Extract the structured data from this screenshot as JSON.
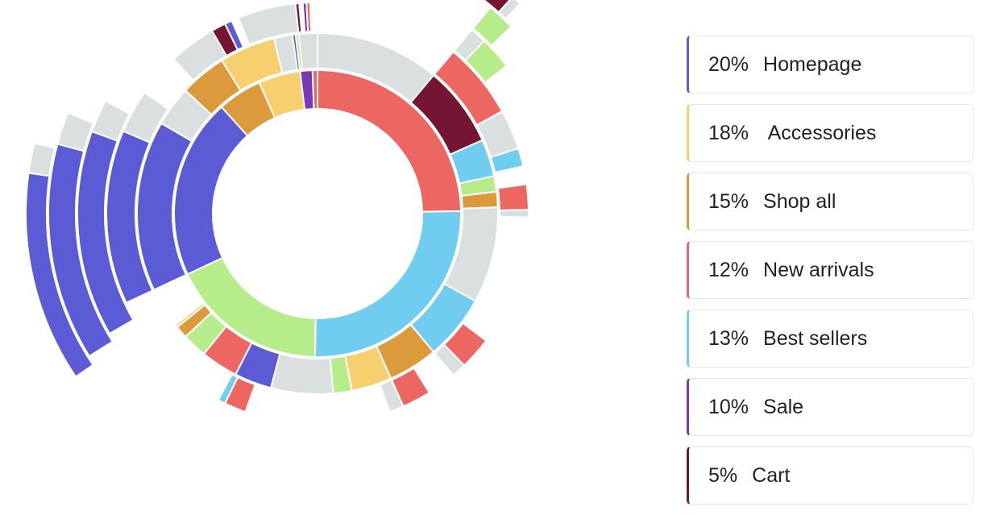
{
  "colors": {
    "homepage": "#5b5bd6",
    "accessories": "#f6d06e",
    "shop_all": "#dc9a3c",
    "new_arrivals": "#ec6762",
    "best_sellers": "#70cdef",
    "sale": "#7838b8",
    "cart": "#751534",
    "green": "#b6ec89",
    "other": "#dadfdf"
  },
  "legend": [
    {
      "pct": "20%",
      "label": "Homepage",
      "color": "#5b5bd6"
    },
    {
      "pct": "18%",
      "label": " Accessories",
      "color": "#f6d06e"
    },
    {
      "pct": "15%",
      "label": "Shop all",
      "color": "#dc9a3c"
    },
    {
      "pct": "12%",
      "label": "New arrivals",
      "color": "#ec6762"
    },
    {
      "pct": "13%",
      "label": "Best sellers",
      "color": "#70cdef"
    },
    {
      "pct": "10%",
      "label": "Sale",
      "color": "#7838b8"
    },
    {
      "pct": "5%",
      "label": "Cart",
      "color": "#751534"
    }
  ],
  "chart_data": {
    "type": "sunburst",
    "title": "",
    "rings": [
      [
        {
          "name": "New arrivals",
          "start": 0,
          "end": 89,
          "color": "new_arrivals"
        },
        {
          "name": "Best sellers",
          "start": 89,
          "end": 181,
          "color": "best_sellers"
        },
        {
          "name": "Green",
          "start": 181,
          "end": 245,
          "color": "green"
        },
        {
          "name": "Homepage",
          "start": 245,
          "end": 318,
          "color": "homepage"
        },
        {
          "name": "Shop all",
          "start": 318,
          "end": 336,
          "color": "shop_all"
        },
        {
          "name": "Accessories",
          "start": 336,
          "end": 353,
          "color": "accessories"
        },
        {
          "name": "Sale",
          "start": 353,
          "end": 358,
          "color": "sale"
        },
        {
          "name": "New arrivals",
          "start": 358,
          "end": 360,
          "color": "new_arrivals"
        }
      ],
      [
        {
          "name": "Other",
          "start": 0,
          "end": 40,
          "color": "other"
        },
        {
          "name": "Cart",
          "start": 40,
          "end": 66,
          "color": "cart"
        },
        {
          "name": "Best sellers",
          "start": 66,
          "end": 78,
          "color": "best_sellers"
        },
        {
          "name": "Green",
          "start": 78,
          "end": 83,
          "color": "green"
        },
        {
          "name": "Shop all",
          "start": 83,
          "end": 88,
          "color": "shop_all"
        },
        {
          "name": "Other",
          "start": 88,
          "end": 119,
          "color": "other"
        },
        {
          "name": "Best sellers",
          "start": 119,
          "end": 140,
          "color": "best_sellers"
        },
        {
          "name": "Shop all",
          "start": 140,
          "end": 156,
          "color": "shop_all"
        },
        {
          "name": "Accessories",
          "start": 156,
          "end": 169,
          "color": "accessories"
        },
        {
          "name": "Green",
          "start": 169,
          "end": 175,
          "color": "green"
        },
        {
          "name": "Other",
          "start": 175,
          "end": 195,
          "color": "other"
        },
        {
          "name": "Homepage",
          "start": 195,
          "end": 207,
          "color": "homepage"
        },
        {
          "name": "New arrivals",
          "start": 207,
          "end": 219,
          "color": "new_arrivals"
        },
        {
          "name": "Green",
          "start": 219,
          "end": 227,
          "color": "green"
        },
        {
          "name": "Shop all",
          "start": 227,
          "end": 231,
          "color": "shop_all"
        },
        {
          "name": "Accessories",
          "start": 231,
          "end": 232,
          "color": "accessories"
        },
        {
          "name": "Homepage",
          "start": 245,
          "end": 300,
          "color": "homepage"
        },
        {
          "name": "Other",
          "start": 300,
          "end": 313,
          "color": "other"
        },
        {
          "name": "Shop all",
          "start": 313,
          "end": 328,
          "color": "shop_all"
        },
        {
          "name": "Accessories",
          "start": 328,
          "end": 346,
          "color": "accessories"
        },
        {
          "name": "Other",
          "start": 346,
          "end": 352,
          "color": "other"
        },
        {
          "name": "Homepage",
          "start": 352,
          "end": 353,
          "color": "homepage"
        },
        {
          "name": "Green",
          "start": 353,
          "end": 354,
          "color": "green"
        },
        {
          "name": "Other",
          "start": 354,
          "end": 360,
          "color": "other"
        }
      ],
      [
        {
          "name": "New arrivals",
          "start": 40,
          "end": 61,
          "color": "new_arrivals"
        },
        {
          "name": "Other",
          "start": 61,
          "end": 72,
          "color": "other"
        },
        {
          "name": "Best sellers",
          "start": 72,
          "end": 77,
          "color": "best_sellers"
        },
        {
          "name": "New arrivals",
          "start": 82,
          "end": 89,
          "color": "new_arrivals"
        },
        {
          "name": "Other",
          "start": 89,
          "end": 91,
          "color": "other"
        },
        {
          "name": "New arrivals",
          "start": 127,
          "end": 136,
          "color": "new_arrivals"
        },
        {
          "name": "Other",
          "start": 136,
          "end": 140,
          "color": "other"
        },
        {
          "name": "New arrivals",
          "start": 148,
          "end": 156,
          "color": "new_arrivals"
        },
        {
          "name": "Other",
          "start": 156,
          "end": 160,
          "color": "other"
        },
        {
          "name": "New arrivals",
          "start": 200,
          "end": 206,
          "color": "new_arrivals"
        },
        {
          "name": "Best sellers",
          "start": 206,
          "end": 208,
          "color": "best_sellers"
        },
        {
          "name": "Homepage",
          "start": 245,
          "end": 293,
          "color": "homepage"
        },
        {
          "name": "Other",
          "start": 293,
          "end": 305,
          "color": "other"
        },
        {
          "name": "Other",
          "start": 317,
          "end": 330,
          "color": "other"
        },
        {
          "name": "Cart",
          "start": 330,
          "end": 334,
          "color": "cart"
        },
        {
          "name": "Homepage",
          "start": 334,
          "end": 336,
          "color": "homepage"
        },
        {
          "name": "Other",
          "start": 338,
          "end": 354,
          "color": "other"
        },
        {
          "name": "Cart",
          "start": 354,
          "end": 355,
          "color": "cart"
        },
        {
          "name": "Sale",
          "start": 356,
          "end": 357,
          "color": "sale"
        },
        {
          "name": "New arrivals",
          "start": 357,
          "end": 358,
          "color": "new_arrivals"
        }
      ],
      [
        {
          "name": "Other",
          "start": 40,
          "end": 44,
          "color": "other"
        },
        {
          "name": "Green",
          "start": 44,
          "end": 52,
          "color": "green"
        },
        {
          "name": "Homepage",
          "start": 240,
          "end": 290,
          "color": "homepage"
        },
        {
          "name": "Other",
          "start": 290,
          "end": 298,
          "color": "other"
        }
      ],
      [
        {
          "name": "Green",
          "start": 40,
          "end": 46,
          "color": "green"
        },
        {
          "name": "Homepage",
          "start": 238,
          "end": 285,
          "color": "homepage"
        },
        {
          "name": "Other",
          "start": 285,
          "end": 292,
          "color": "other"
        }
      ],
      [
        {
          "name": "Cart",
          "start": 36,
          "end": 42,
          "color": "cart"
        },
        {
          "name": "Other",
          "start": 42,
          "end": 44,
          "color": "other"
        },
        {
          "name": "Homepage",
          "start": 236,
          "end": 278,
          "color": "homepage"
        },
        {
          "name": "Other",
          "start": 278,
          "end": 284,
          "color": "other"
        }
      ]
    ]
  }
}
